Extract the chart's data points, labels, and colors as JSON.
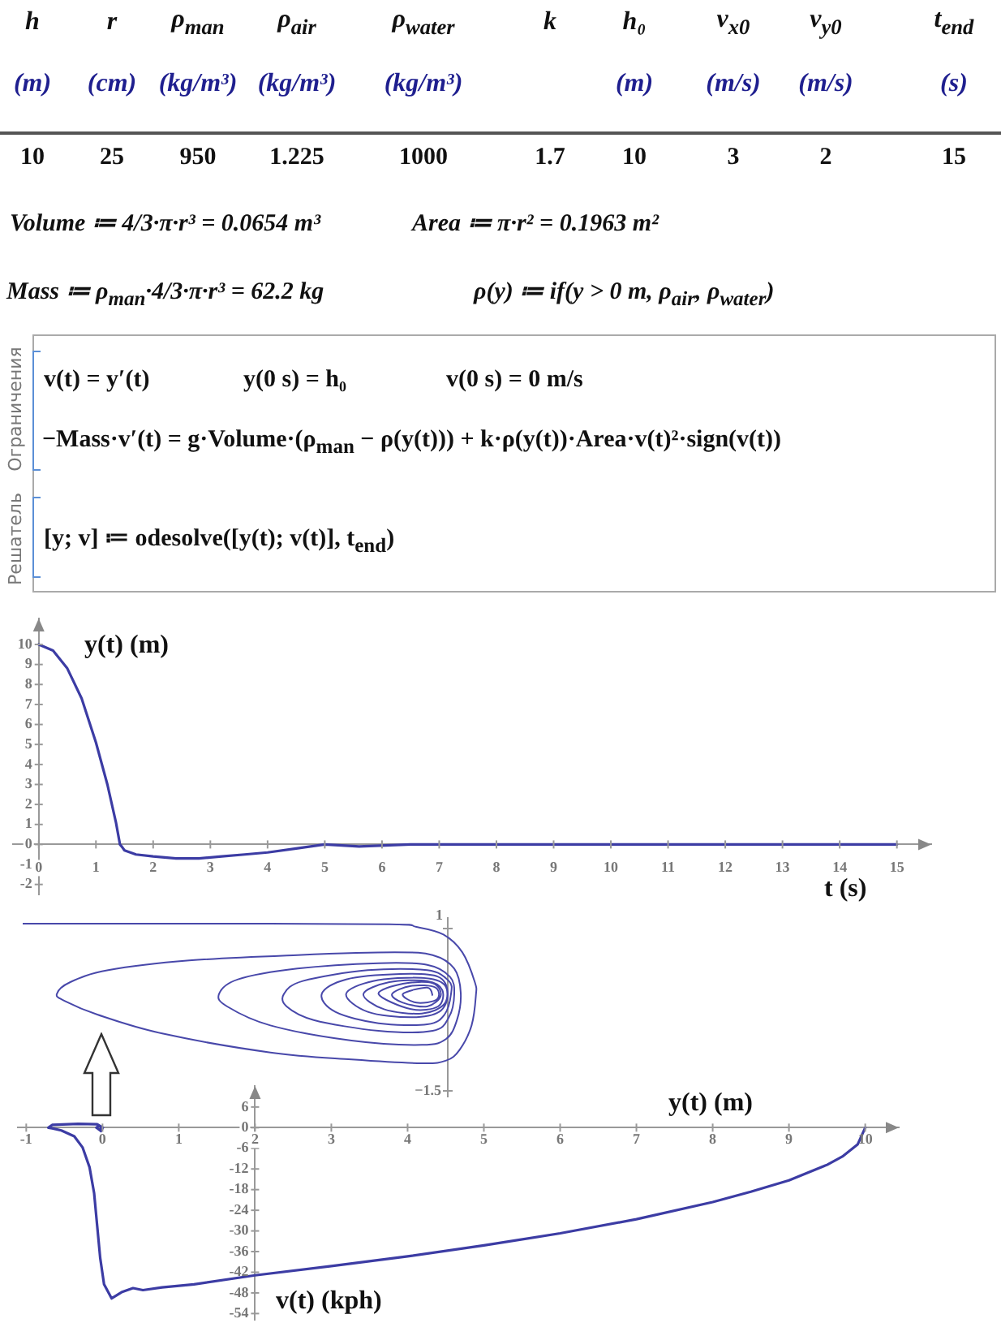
{
  "chart_data": [
    {
      "type": "other",
      "annotations": [
        "h",
        "r",
        "ρ$_{man}$",
        "ρ$_{air}$",
        "ρ$_{water}$",
        "k",
        "h₀",
        "v$_{x0}$",
        "v$_{y0}$",
        "t$_{end}$",
        "(m)",
        "(cm)",
        "(kg/m³)",
        "(kg/m³)",
        "(kg/m³)",
        "(m)",
        "(m/s)",
        "(m/s)",
        "(s)",
        "10",
        "25",
        "950",
        "1.225",
        "1000",
        "1.7",
        "10",
        "3",
        "2",
        "15",
        "Volume ≔ 4/3·π·r³ = 0.0654 m³",
        "Area ≔ π·r² = 0.1963 m²",
        "Mass ≔ ρ$_{man}$·4/3·π·r³ = 62.2 kg",
        "ρ(y) ≔ if(y > 0 m, ρ$_{air}$, ρ$_{water}$)",
        "v(t) = y′(t)",
        "y(0 s) = h₀",
        "v(0 s) = 0 m/s",
        "−Mass·v′(t) = g·Volume·(ρ$_{man}$ − ρ(y(t))) + k·ρ(y(t))·Area·v(t)²·sign(v(t))",
        "[y; v] ≔ odesolve([y(t); v(t)], t$_{end}$)",
        "Ограничения",
        "Решатель"
      ]
    },
    {
      "type": "line",
      "xlabel": "t (s)",
      "ylabel": "y(t) (m)",
      "x": [
        0,
        0.25,
        0.5,
        0.75,
        1,
        1.2,
        1.35,
        1.42,
        1.45,
        1.5,
        1.7,
        2,
        2.4,
        2.8,
        3.2,
        3.6,
        4,
        4.5,
        5,
        5.6,
        6.5,
        7,
        8,
        9,
        10,
        11,
        12,
        13,
        14,
        15
      ],
      "values": [
        10,
        9.7,
        8.8,
        7.3,
        5.1,
        3,
        1.1,
        0,
        -0.1,
        -0.3,
        -0.5,
        -0.6,
        -0.7,
        -0.7,
        -0.6,
        -0.5,
        -0.4,
        -0.2,
        0,
        -0.1,
        0,
        0,
        0,
        0,
        0,
        0,
        0,
        0,
        0,
        0
      ],
      "color": "#3c3ca4",
      "xlim": [
        -0.45,
        15.6
      ],
      "ylim": [
        -2.5,
        11.3
      ],
      "xticks": [
        0,
        1,
        2,
        3,
        4,
        5,
        6,
        7,
        8,
        9,
        10,
        11,
        12,
        13,
        14,
        15
      ],
      "yticks": [
        -2,
        -1,
        0,
        1,
        2,
        3,
        4,
        5,
        6,
        7,
        8,
        9,
        10
      ]
    },
    {
      "type": "other",
      "annotations": [
        "1",
        "−1.5"
      ]
    },
    {
      "type": "line",
      "xlabel": "y(t) (m)",
      "ylabel": "v(t) (kph)",
      "x": [
        10,
        9.9,
        9.7,
        9.5,
        9,
        8.5,
        8,
        7,
        6,
        5,
        4,
        3,
        2,
        1.2,
        0.78,
        0.53,
        0.4,
        0.25,
        0.12,
        0.02,
        -0.03,
        -0.07,
        -0.11,
        -0.17,
        -0.26,
        -0.37,
        -0.54,
        -0.66,
        -0.71,
        -0.66,
        -0.32,
        -0.07,
        0.005,
        -0.02,
        -0.08,
        -0.05,
        0,
        -0.03,
        -0.01
      ],
      "values": [
        0,
        -4.9,
        -8.4,
        -10.8,
        -15.3,
        -18.6,
        -21.6,
        -26.6,
        -30.7,
        -34.2,
        -37.4,
        -40.2,
        -42.9,
        -45.5,
        -46.4,
        -47.2,
        -46.6,
        -47.8,
        -49.6,
        -45.5,
        -37.9,
        -28.5,
        -19,
        -11.5,
        -5.8,
        -2.5,
        -0.8,
        -0.2,
        0,
        0.8,
        1.1,
        1,
        0,
        -1,
        0,
        0.6,
        0,
        -0.5,
        0
      ],
      "color": "#3c3ca4",
      "xlim": [
        -1.11,
        10.44
      ],
      "ylim": [
        -55.8,
        12.1
      ],
      "xticks": [
        -1,
        0,
        1,
        2,
        3,
        4,
        5,
        6,
        7,
        8,
        9,
        10
      ],
      "yticks": [
        -54,
        -48,
        -42,
        -36,
        -30,
        -24,
        -18,
        -12,
        -6,
        0,
        6
      ]
    }
  ]
}
